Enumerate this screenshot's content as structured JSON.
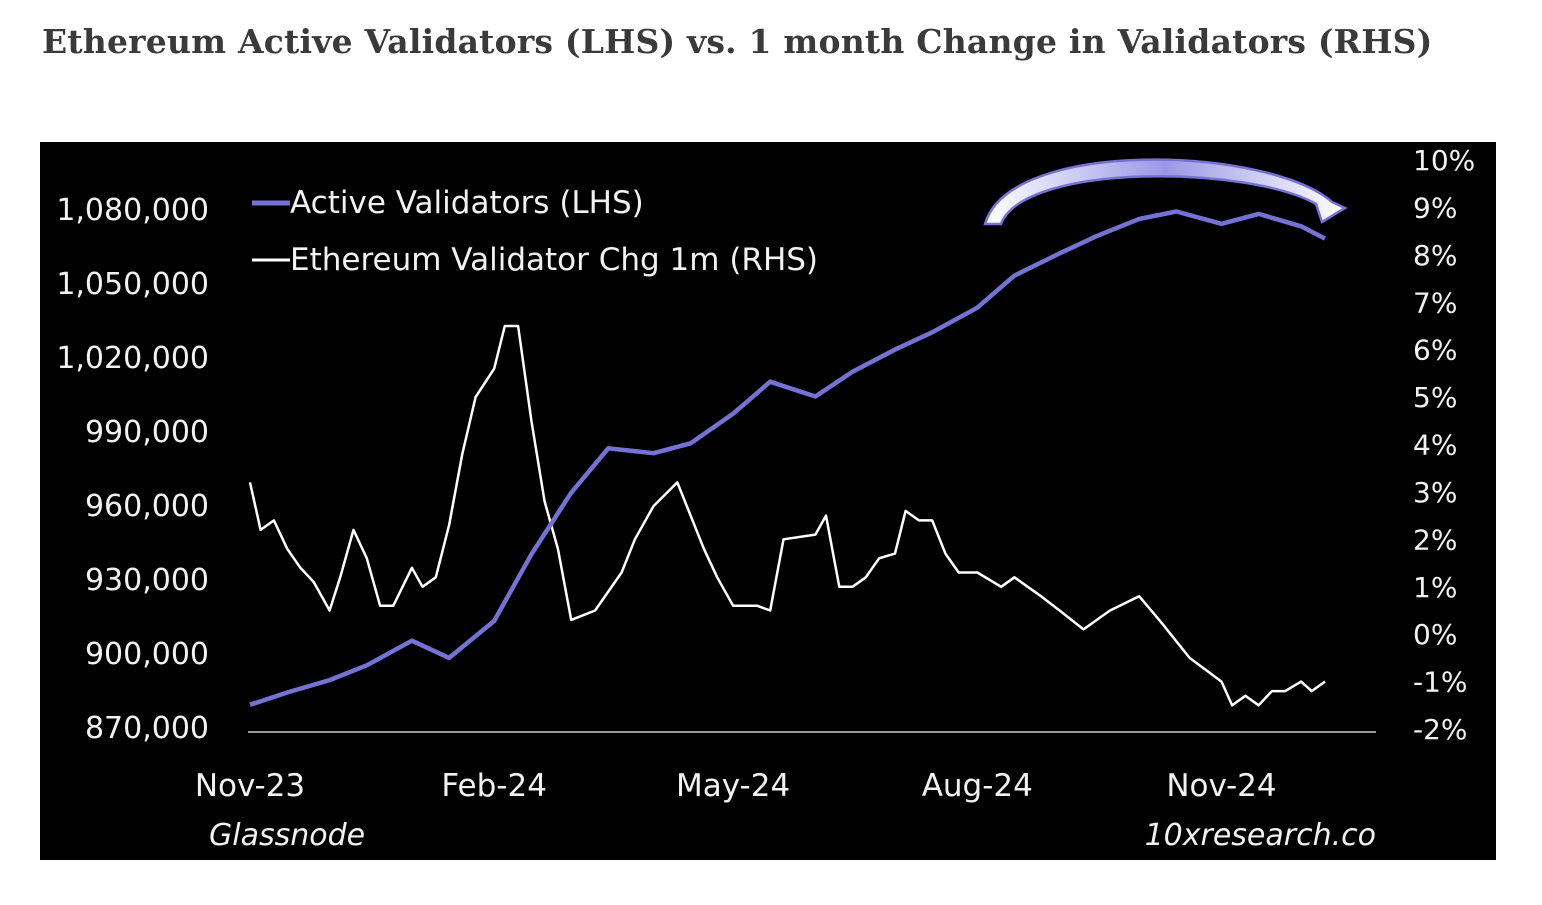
{
  "page": {
    "title": "Ethereum Active Validators (LHS) vs. 1 month Change in Validators (RHS)"
  },
  "chart_data": {
    "type": "line",
    "colors": {
      "active_validators": "#7472d4",
      "validator_chg": "#ffffff",
      "background": "#000000"
    },
    "x_tick_labels": [
      "Nov-23",
      "Feb-24",
      "May-24",
      "Aug-24",
      "Nov-24"
    ],
    "y_left_tick_labels": [
      "870,000",
      "900,000",
      "930,000",
      "960,000",
      "990,000",
      "1,020,000",
      "1,050,000",
      "1,080,000"
    ],
    "y_right_tick_labels": [
      "-2%",
      "-1%",
      "0%",
      "1%",
      "2%",
      "3%",
      "4%",
      "5%",
      "6%",
      "7%",
      "8%",
      "9%",
      "10%"
    ],
    "y_left_range": [
      870000,
      1080000
    ],
    "y_right_range": [
      -2,
      10
    ],
    "legend": [
      "Active Validators (LHS)",
      "Ethereum Validator Chg 1m (RHS)"
    ],
    "legend_position": "top-left",
    "annotation": "curved arrow over the late-2024 peak pointing down",
    "sources": {
      "left": "Glassnode",
      "right": "10xresearch.co"
    },
    "series": [
      {
        "name": "Active Validators (LHS)",
        "axis": "left",
        "x": [
          "2023-11-01",
          "2023-11-15",
          "2023-12-01",
          "2023-12-15",
          "2024-01-01",
          "2024-01-15",
          "2024-02-01",
          "2024-02-15",
          "2024-03-01",
          "2024-03-15",
          "2024-04-01",
          "2024-04-15",
          "2024-05-01",
          "2024-05-15",
          "2024-06-01",
          "2024-06-15",
          "2024-07-01",
          "2024-07-15",
          "2024-08-01",
          "2024-08-15",
          "2024-09-01",
          "2024-09-15",
          "2024-10-01",
          "2024-10-15",
          "2024-11-01",
          "2024-11-15",
          "2024-12-01",
          "2024-12-10"
        ],
        "y": [
          879000,
          884000,
          889000,
          895000,
          905000,
          898000,
          913000,
          940000,
          965000,
          983000,
          981000,
          985000,
          997000,
          1010000,
          1004000,
          1014000,
          1023000,
          1030000,
          1040000,
          1053000,
          1062000,
          1069000,
          1076000,
          1079000,
          1074000,
          1078000,
          1073000,
          1068000
        ]
      },
      {
        "name": "Ethereum Validator Chg 1m (RHS)",
        "axis": "right",
        "x": [
          "2023-11-01",
          "2023-11-05",
          "2023-11-10",
          "2023-11-15",
          "2023-11-20",
          "2023-11-25",
          "2023-12-01",
          "2023-12-05",
          "2023-12-10",
          "2023-12-15",
          "2023-12-20",
          "2023-12-25",
          "2024-01-01",
          "2024-01-05",
          "2024-01-10",
          "2024-01-15",
          "2024-01-20",
          "2024-01-25",
          "2024-02-01",
          "2024-02-05",
          "2024-02-10",
          "2024-02-15",
          "2024-02-20",
          "2024-02-25",
          "2024-03-01",
          "2024-03-10",
          "2024-03-20",
          "2024-03-25",
          "2024-04-01",
          "2024-04-10",
          "2024-04-20",
          "2024-04-25",
          "2024-05-01",
          "2024-05-05",
          "2024-05-10",
          "2024-05-15",
          "2024-05-20",
          "2024-06-01",
          "2024-06-05",
          "2024-06-10",
          "2024-06-15",
          "2024-06-20",
          "2024-06-25",
          "2024-07-01",
          "2024-07-05",
          "2024-07-10",
          "2024-07-15",
          "2024-07-20",
          "2024-07-25",
          "2024-08-01",
          "2024-08-10",
          "2024-08-15",
          "2024-08-20",
          "2024-08-25",
          "2024-09-01",
          "2024-09-10",
          "2024-09-20",
          "2024-10-01",
          "2024-10-10",
          "2024-10-20",
          "2024-11-01",
          "2024-11-05",
          "2024-11-10",
          "2024-11-15",
          "2024-11-20",
          "2024-11-25",
          "2024-12-01",
          "2024-12-05",
          "2024-12-10"
        ],
        "y": [
          3.2,
          2.2,
          2.4,
          1.8,
          1.4,
          1.1,
          0.5,
          1.2,
          2.2,
          1.6,
          0.6,
          0.6,
          1.4,
          1.0,
          1.2,
          2.3,
          3.8,
          5.0,
          5.6,
          6.5,
          6.5,
          4.5,
          2.8,
          1.8,
          0.3,
          0.5,
          1.3,
          2.0,
          2.7,
          3.2,
          1.8,
          1.2,
          0.6,
          0.6,
          0.6,
          0.5,
          2.0,
          2.1,
          2.5,
          1.0,
          1.0,
          1.2,
          1.6,
          1.7,
          2.6,
          2.4,
          2.4,
          1.7,
          1.3,
          1.3,
          1.0,
          1.2,
          1.0,
          0.8,
          0.5,
          0.1,
          0.5,
          0.8,
          0.2,
          -0.5,
          -1.0,
          -1.5,
          -1.3,
          -1.5,
          -1.2,
          -1.2,
          -1.0,
          -1.2,
          -1.0
        ]
      }
    ]
  }
}
